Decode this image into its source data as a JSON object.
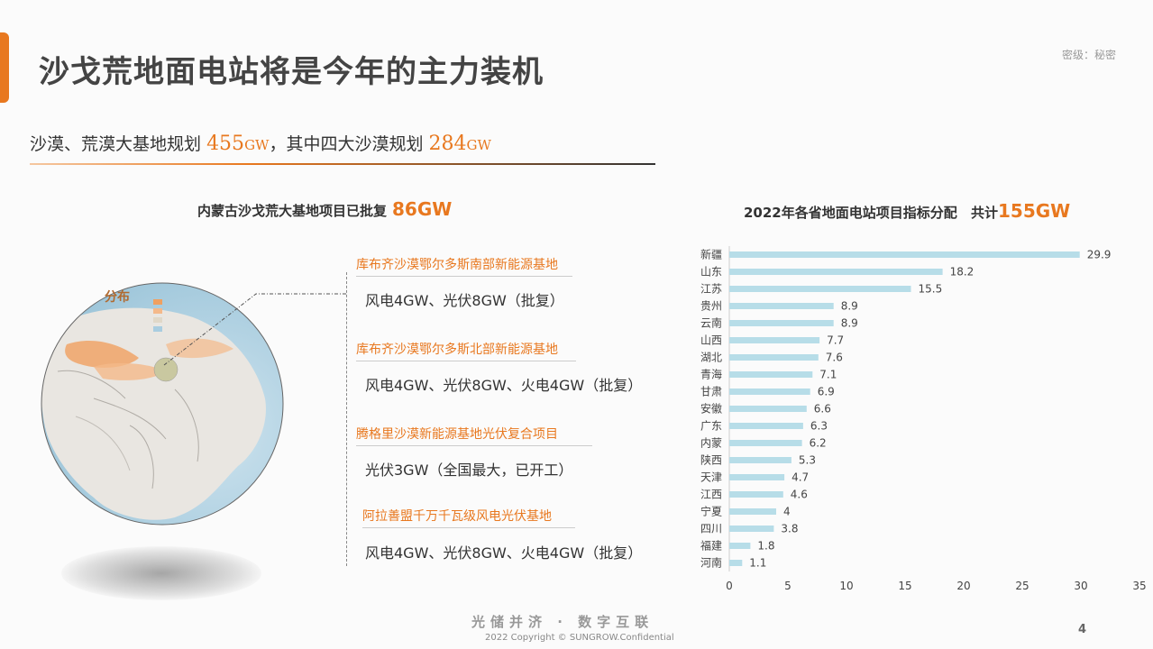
{
  "header": {
    "title": "沙戈荒地面电站将是今年的主力装机",
    "confidential": "密级：秘密"
  },
  "subtitle": {
    "part1": "沙漠、荒漠大基地规划",
    "value1": "455",
    "unit1": "GW",
    "part2": "，其中四大沙漠规划",
    "value2": "284",
    "unit2": "GW"
  },
  "left_panel": {
    "heading": "内蒙古沙戈荒大基地项目已批复",
    "heading_value": "86GW",
    "projects": [
      {
        "title": "库布齐沙漠鄂尔多斯南部新能源基地",
        "detail": "风电4GW、光伏8GW（批复）"
      },
      {
        "title": "库布齐沙漠鄂尔多斯北部新能源基地",
        "detail": "风电4GW、光伏8GW、火电4GW（批复）"
      },
      {
        "title": "腾格里沙漠新能源基地光伏复合项目",
        "detail": "光伏3GW（全国最大，已开工）"
      },
      {
        "title": "阿拉善盟千万千瓦级风电光伏基地",
        "detail": "风电4GW、光伏8GW、火电4GW（批复）"
      }
    ],
    "map_label": "分布"
  },
  "right_panel": {
    "heading": "2022年各省地面电站项目指标分配",
    "heading_total_label": "共计",
    "heading_total_value": "155GW"
  },
  "chart_data": {
    "type": "bar",
    "orientation": "horizontal",
    "categories": [
      "新疆",
      "山东",
      "江苏",
      "贵州",
      "云南",
      "山西",
      "湖北",
      "青海",
      "甘肃",
      "安徽",
      "广东",
      "内蒙",
      "陕西",
      "天津",
      "江西",
      "宁夏",
      "四川",
      "福建",
      "河南"
    ],
    "values": [
      29.9,
      18.2,
      15.5,
      8.9,
      8.9,
      7.7,
      7.6,
      7.1,
      6.9,
      6.6,
      6.3,
      6.2,
      5.3,
      4.7,
      4.6,
      4,
      3.8,
      1.8,
      1.1
    ],
    "xlim": [
      0,
      35
    ],
    "xticks": [
      0,
      5,
      10,
      15,
      20,
      25,
      30,
      35
    ],
    "bar_color": "#b7dde8",
    "grid": false
  },
  "footer": {
    "slogan": "光储并济 · 数字互联",
    "copyright": "2022 Copyright © SUNGROW.Confidential",
    "page_number": "4"
  },
  "colors": {
    "accent": "#e8781f",
    "bar": "#b7dde8"
  }
}
